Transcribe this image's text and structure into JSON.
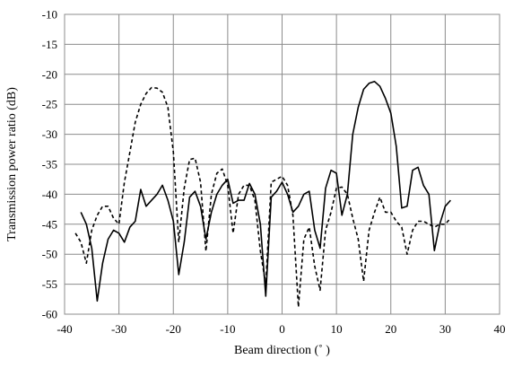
{
  "chart_data": {
    "type": "line",
    "title": "",
    "xlabel": "Beam direction (˚ )",
    "ylabel": "Transmission power ratio (dB)",
    "xlim": [
      -40,
      40
    ],
    "ylim": [
      -60,
      -10
    ],
    "xticks": [
      -40,
      -30,
      -20,
      -10,
      0,
      10,
      20,
      30,
      40
    ],
    "yticks": [
      -10,
      -15,
      -20,
      -25,
      -30,
      -35,
      -40,
      -45,
      -50,
      -55,
      -60
    ],
    "grid": true,
    "legend": "none",
    "series": [
      {
        "style": "solid",
        "color": "#000000",
        "x": [
          -37,
          -36,
          -35,
          -34,
          -33,
          -32,
          -31,
          -30,
          -29,
          -28,
          -27,
          -26,
          -25,
          -24,
          -23,
          -22,
          -21,
          -20,
          -19,
          -18,
          -17,
          -16,
          -15,
          -14,
          -13,
          -12,
          -11,
          -10,
          -9,
          -8,
          -7,
          -6,
          -5,
          -4,
          -3,
          -2,
          -1,
          0,
          1,
          2,
          3,
          4,
          5,
          6,
          7,
          8,
          9,
          10,
          11,
          12,
          13,
          14,
          15,
          16,
          17,
          18,
          19,
          20,
          21,
          22,
          23,
          24,
          25,
          26,
          27,
          28,
          29,
          30,
          31
        ],
        "y": [
          -43,
          -45,
          -49,
          -57.8,
          -51.5,
          -47.5,
          -46,
          -46.5,
          -48,
          -45.5,
          -44.5,
          -39.2,
          -42,
          -41,
          -40,
          -38.5,
          -41,
          -44.5,
          -53.4,
          -48,
          -40.5,
          -39.5,
          -42,
          -47.5,
          -43,
          -40,
          -38.5,
          -37.5,
          -41.5,
          -41,
          -41,
          -38.2,
          -40,
          -45,
          -57,
          -40.5,
          -39.5,
          -38,
          -40,
          -43,
          -42,
          -40,
          -39.5,
          -46,
          -49,
          -39,
          -36,
          -36.5,
          -43.5,
          -40,
          -30,
          -25.5,
          -22.5,
          -21.5,
          -21.2,
          -22,
          -24,
          -26.5,
          -32,
          -42.3,
          -42,
          -36,
          -35.5,
          -38.5,
          -40,
          -49.4,
          -45,
          -42,
          -41
        ]
      },
      {
        "style": "dashed",
        "color": "#000000",
        "x": [
          -38,
          -37,
          -36,
          -35,
          -34,
          -33,
          -32,
          -31,
          -30,
          -29,
          -28,
          -27,
          -26,
          -25,
          -24,
          -23,
          -22,
          -21,
          -20,
          -19,
          -18,
          -17,
          -16,
          -15,
          -14,
          -13,
          -12,
          -11,
          -10,
          -9,
          -8,
          -7,
          -6,
          -5,
          -4,
          -3,
          -2,
          -1,
          0,
          1,
          2,
          3,
          4,
          5,
          6,
          7,
          8,
          9,
          10,
          11,
          12,
          13,
          14,
          15,
          16,
          17,
          18,
          19,
          20,
          21,
          22,
          23,
          24,
          25,
          26,
          27,
          28,
          29,
          30,
          31
        ],
        "y": [
          -46.5,
          -48,
          -51.5,
          -46,
          -43.5,
          -42,
          -42,
          -44,
          -45,
          -38,
          -33,
          -28,
          -25,
          -23.2,
          -22.2,
          -22.3,
          -23,
          -25.5,
          -33,
          -48,
          -39,
          -34.2,
          -34,
          -38,
          -49.5,
          -40,
          -36.5,
          -35.8,
          -38.5,
          -46.5,
          -40,
          -38.5,
          -38.5,
          -41,
          -49.5,
          -55,
          -38,
          -37.5,
          -37,
          -38.5,
          -43.5,
          -58.8,
          -47.5,
          -45.5,
          -52,
          -56,
          -46,
          -43,
          -39,
          -38.8,
          -40,
          -44,
          -47.5,
          -54.5,
          -46,
          -43,
          -40.5,
          -43,
          -43,
          -44.5,
          -45.5,
          -50,
          -46,
          -44.5,
          -44.5,
          -45,
          -45.5,
          -45,
          -45,
          -44
        ]
      }
    ]
  }
}
